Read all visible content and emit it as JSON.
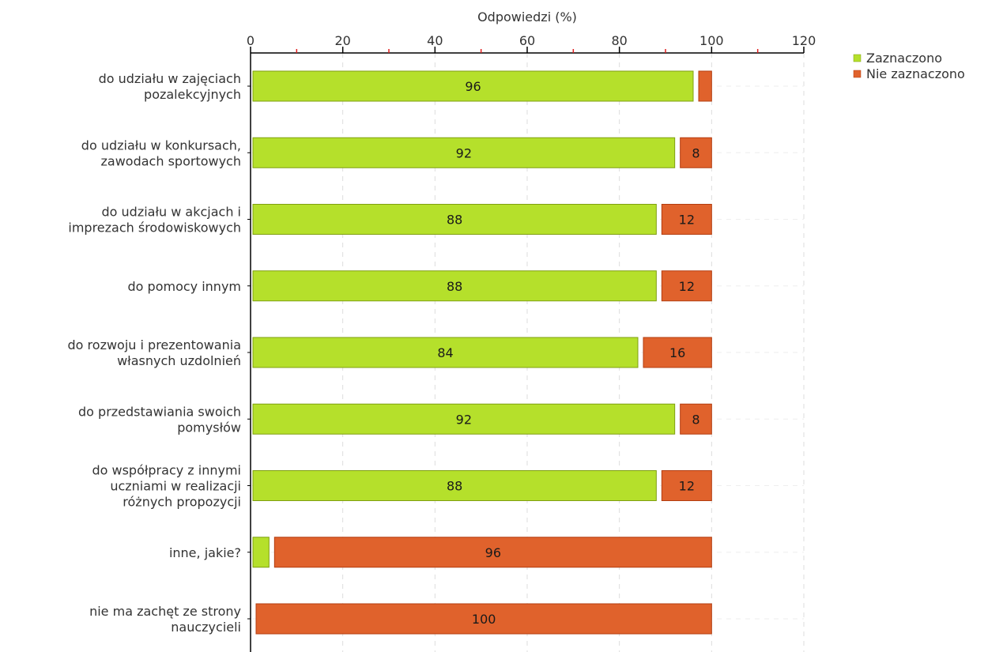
{
  "chart_data": {
    "type": "bar",
    "orientation": "horizontal",
    "stacked": true,
    "xlabel": "Odpowiedzi (%)",
    "x_axis_position": "top",
    "xlim": [
      0,
      120
    ],
    "xticks": [
      0,
      20,
      40,
      60,
      80,
      100,
      120
    ],
    "grid": true,
    "legend_position": "top-right",
    "categories": [
      [
        "do udziału w zajęciach",
        "pozalekcyjnych"
      ],
      [
        "do udziału w konkursach,",
        "zawodach sportowych"
      ],
      [
        "do udziału w akcjach i",
        "imprezach środowiskowych"
      ],
      [
        "do pomocy innym"
      ],
      [
        "do rozwoju i prezentowania",
        "własnych uzdolnień"
      ],
      [
        "do przedstawiania swoich",
        "pomysłów"
      ],
      [
        "do współpracy z innymi",
        "uczniami w realizacji",
        "różnych propozycji"
      ],
      [
        "inne, jakie?"
      ],
      [
        "nie ma zachęt ze strony",
        "nauczycieli"
      ]
    ],
    "series": [
      {
        "name": "Zaznaczono",
        "color": "#b5e02b",
        "stroke": "#7f9f10",
        "values": [
          96,
          92,
          88,
          88,
          84,
          92,
          88,
          4,
          0
        ],
        "labels": [
          "96",
          "92",
          "88",
          "88",
          "84",
          "92",
          "88",
          "",
          ""
        ]
      },
      {
        "name": "Nie zaznaczono",
        "color": "#e0622c",
        "stroke": "#b33d10",
        "values": [
          4,
          8,
          12,
          12,
          16,
          8,
          12,
          96,
          100
        ],
        "labels": [
          "",
          "8",
          "12",
          "12",
          "16",
          "8",
          "12",
          "96",
          "100"
        ]
      }
    ]
  }
}
